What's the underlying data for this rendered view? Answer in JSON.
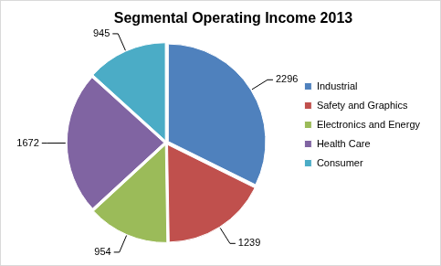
{
  "chart_data": {
    "type": "pie",
    "title": "Segmental Operating Income 2013",
    "categories": [
      "Industrial",
      "Safety and Graphics",
      "Electronics and Energy",
      "Health Care",
      "Consumer"
    ],
    "values": [
      2296,
      1239,
      954,
      1672,
      945
    ],
    "colors": [
      "#4f81bd",
      "#c0504d",
      "#9bbb59",
      "#8064a2",
      "#4bacc6"
    ],
    "legend": "right",
    "data_labels": true
  }
}
